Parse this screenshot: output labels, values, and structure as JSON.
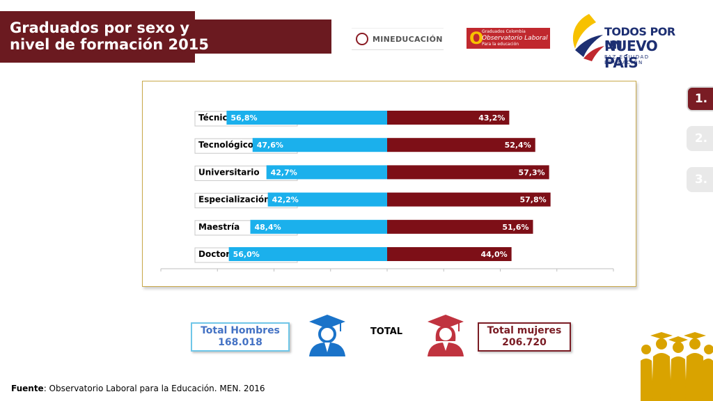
{
  "header": {
    "title": "Graduados por sexo y\nnivel de formación 2015"
  },
  "logos": {
    "mineducacion": "MINEDUCACIÓN",
    "observatorio_small": "Graduados Colombia",
    "observatorio_name": "Observatorio Laboral",
    "observatorio_sub": "Para la educación",
    "todos_line1": "TODOS POR UN",
    "todos_line2": "NUEVO PAÍS",
    "todos_line3": "PAZ  EQUIDAD  EDUCACIÓN"
  },
  "nav": {
    "items": [
      "1.",
      "2.",
      "3."
    ],
    "active_index": 0
  },
  "chart_data": {
    "type": "bar",
    "orientation": "horizontal-diverging",
    "categories": [
      "Técnica profesional",
      "Tecnológico",
      "Universitario",
      "Especialización",
      "Maestría",
      "Doctorado"
    ],
    "series": [
      {
        "name": "Hombres",
        "values": [
          56.8,
          47.6,
          42.7,
          42.2,
          48.4,
          56.0
        ],
        "labels": [
          "56,8%",
          "47,6%",
          "42,7%",
          "42,2%",
          "48,4%",
          "56,0%"
        ],
        "color": "#1bb0ec"
      },
      {
        "name": "Mujeres",
        "values": [
          43.2,
          52.4,
          57.3,
          57.8,
          51.6,
          44.0
        ],
        "labels": [
          "43,2%",
          "52,4%",
          "57,3%",
          "57,8%",
          "51,6%",
          "44,0%"
        ],
        "color": "#7d0f17"
      }
    ],
    "xlim": [
      -80,
      80
    ],
    "title": "",
    "xlabel": "",
    "ylabel": ""
  },
  "totals": {
    "men_label": "Total Hombres",
    "men_value": "168.018",
    "center_label": "TOTAL",
    "women_label": "Total mujeres",
    "women_value": "206.720"
  },
  "colors": {
    "men_accent": "#1bb0ec",
    "women_accent": "#7d0f17",
    "title_bg": "#6b1a20",
    "frame": "#c9a94a"
  },
  "source": {
    "label": "Fuente",
    "text": ": Observatorio Laboral para la Educación. MEN. 2016"
  }
}
